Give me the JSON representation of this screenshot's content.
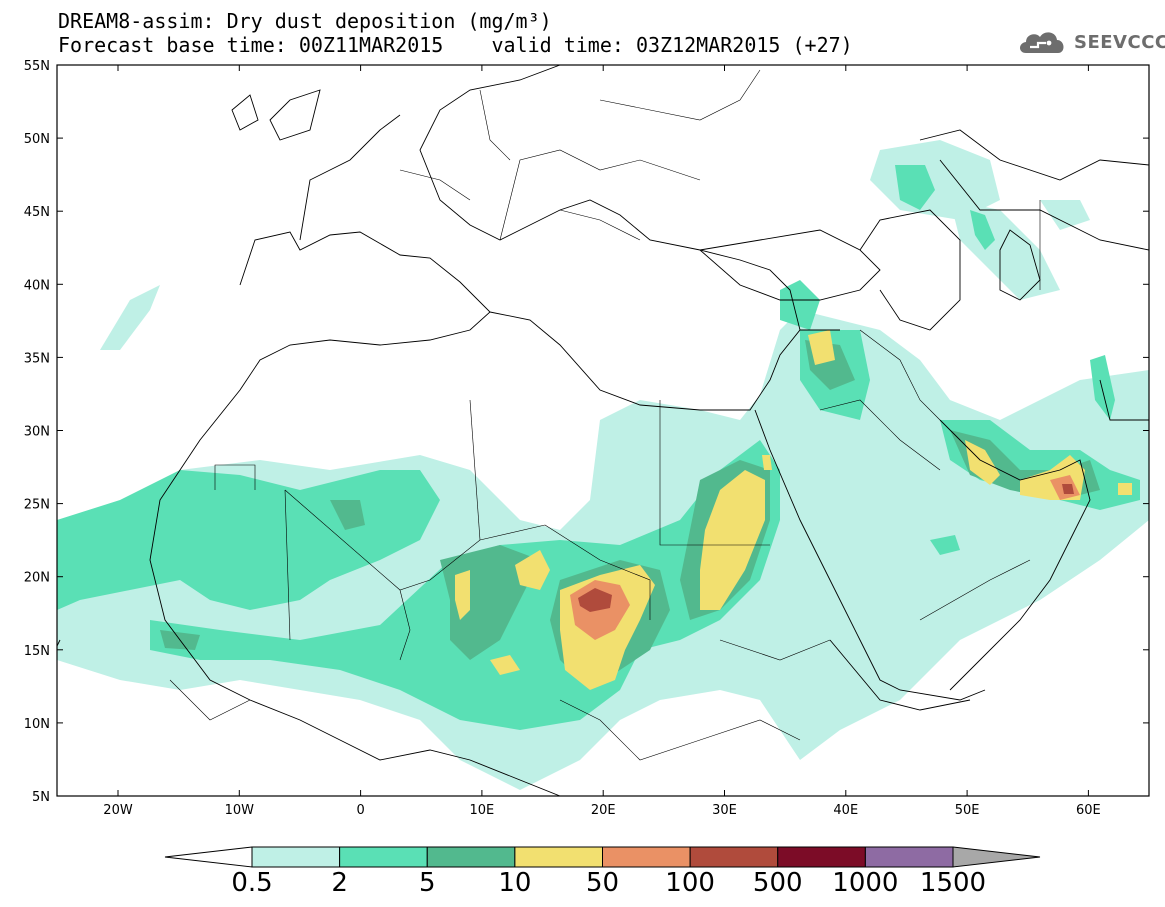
{
  "title": {
    "line1": "DREAM8-assim: Dry dust deposition (mg/m³)",
    "line2": "Forecast base time: 00Z11MAR2015    valid time: 03Z12MAR2015 (+27)"
  },
  "logo": {
    "text": "SEEVCCC",
    "icon": "cloud-logo-icon"
  },
  "map": {
    "lat_ticks": [
      "55N",
      "50N",
      "45N",
      "40N",
      "35N",
      "30N",
      "25N",
      "20N",
      "15N",
      "10N",
      "5N"
    ],
    "lon_ticks": [
      "20W",
      "10W",
      "0",
      "10E",
      "20E",
      "30E",
      "40E",
      "50E",
      "60E"
    ]
  },
  "colorbar": {
    "labels": [
      "0.5",
      "2",
      "5",
      "10",
      "50",
      "100",
      "500",
      "1000",
      "1500"
    ],
    "colors": [
      "#ffffff",
      "#bff0e6",
      "#5ae0b5",
      "#52b98e",
      "#f2e070",
      "#ea9165",
      "#b04b3c",
      "#7c0c27",
      "#8e6ba3",
      "#a8a8a8"
    ]
  }
}
